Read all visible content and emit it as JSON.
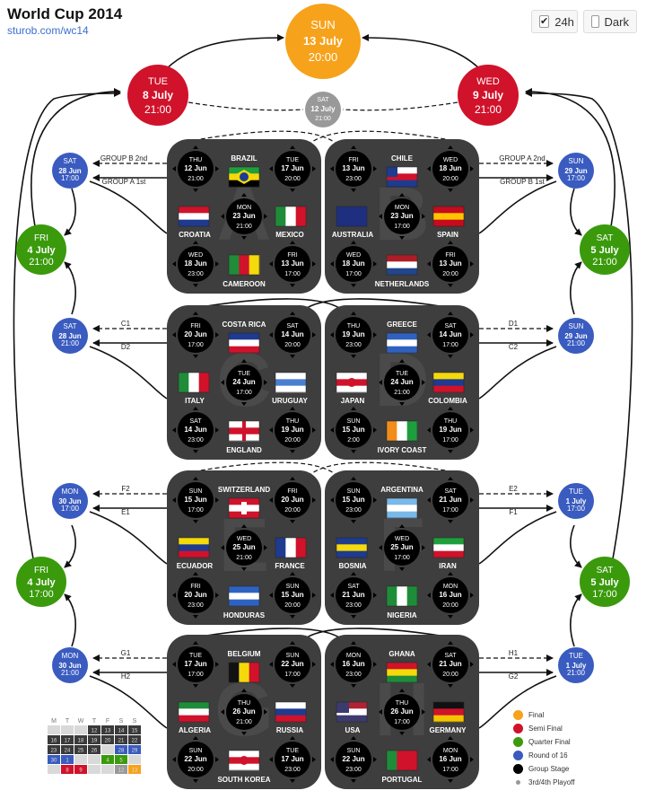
{
  "header": {
    "title": "World Cup 2014",
    "link": "sturob.com/wc14"
  },
  "toggles": [
    {
      "label": "24h",
      "checked": true
    },
    {
      "label": "Dark",
      "checked": false
    }
  ],
  "colors": {
    "final": "#f7a21b",
    "semi": "#d0122b",
    "quarter": "#3a9a0c",
    "round16": "#3a5bbf",
    "group": "#000000",
    "third": "#999999",
    "panel": "#3e3e3e"
  },
  "final": {
    "day": "SUN",
    "date": "13 July",
    "time": "20:00"
  },
  "semis": [
    {
      "day": "TUE",
      "date": "8 July",
      "time": "21:00"
    },
    {
      "day": "WED",
      "date": "9 July",
      "time": "21:00"
    }
  ],
  "third_place": {
    "day": "SAT",
    "date": "12 July",
    "time": "21:00"
  },
  "quarters": [
    {
      "day": "FRI",
      "date": "4 July",
      "time": "21:00"
    },
    {
      "day": "SAT",
      "date": "5 July",
      "time": "21:00"
    },
    {
      "day": "FRI",
      "date": "4 July",
      "time": "17:00"
    },
    {
      "day": "SAT",
      "date": "5 July",
      "time": "17:00"
    }
  ],
  "round16": [
    {
      "day": "SAT",
      "date": "28 Jun",
      "time": "17:00"
    },
    {
      "day": "SUN",
      "date": "29 Jun",
      "time": "17:00"
    },
    {
      "day": "SAT",
      "date": "28 Jun",
      "time": "21:00"
    },
    {
      "day": "SUN",
      "date": "29 Jun",
      "time": "21:00"
    },
    {
      "day": "MON",
      "date": "30 Jun",
      "time": "17:00"
    },
    {
      "day": "TUE",
      "date": "1 July",
      "time": "17:00"
    },
    {
      "day": "MON",
      "date": "30 Jun",
      "time": "21:00"
    },
    {
      "day": "TUE",
      "date": "1 July",
      "time": "21:00"
    }
  ],
  "slot_labels": [
    [
      "GROUP B 2nd",
      "GROUP A 1st",
      "GROUP A 2nd",
      "GROUP B 1st"
    ],
    [
      "C1",
      "D2",
      "D1",
      "C2"
    ],
    [
      "F2",
      "E1",
      "E2",
      "F1"
    ],
    [
      "G1",
      "H2",
      "H1",
      "G2"
    ]
  ],
  "groups": [
    {
      "name": "A",
      "teams": [
        "BRAZIL",
        "CROATIA",
        "MEXICO",
        "CAMEROON"
      ],
      "matches": [
        {
          "day": "THU",
          "date": "12 Jun",
          "time": "21:00"
        },
        {
          "day": "TUE",
          "date": "17 Jun",
          "time": "20:00"
        },
        {
          "day": "MON",
          "date": "23 Jun",
          "time": "21:00"
        },
        {
          "day": "WED",
          "date": "18 Jun",
          "time": "23:00"
        },
        {
          "day": "FRI",
          "date": "13 Jun",
          "time": "17:00"
        }
      ]
    },
    {
      "name": "B",
      "teams": [
        "CHILE",
        "AUSTRALIA",
        "SPAIN",
        "NETHERLANDS"
      ],
      "matches": [
        {
          "day": "FRI",
          "date": "13 Jun",
          "time": "23:00"
        },
        {
          "day": "WED",
          "date": "18 Jun",
          "time": "20:00"
        },
        {
          "day": "MON",
          "date": "23 Jun",
          "time": "17:00"
        },
        {
          "day": "WED",
          "date": "18 Jun",
          "time": "17:00"
        },
        {
          "day": "FRI",
          "date": "13 Jun",
          "time": "20:00"
        }
      ]
    },
    {
      "name": "C",
      "teams": [
        "COSTA RICA",
        "ITALY",
        "URUGUAY",
        "ENGLAND"
      ],
      "matches": [
        {
          "day": "FRI",
          "date": "20 Jun",
          "time": "17:00"
        },
        {
          "day": "SAT",
          "date": "14 Jun",
          "time": "20:00"
        },
        {
          "day": "TUE",
          "date": "24 Jun",
          "time": "17:00"
        },
        {
          "day": "SAT",
          "date": "14 Jun",
          "time": "23:00"
        },
        {
          "day": "THU",
          "date": "19 Jun",
          "time": "20:00"
        }
      ]
    },
    {
      "name": "D",
      "teams": [
        "GREECE",
        "JAPAN",
        "COLOMBIA",
        "IVORY COAST"
      ],
      "matches": [
        {
          "day": "THU",
          "date": "19 Jun",
          "time": "23:00"
        },
        {
          "day": "SAT",
          "date": "14 Jun",
          "time": "17:00"
        },
        {
          "day": "TUE",
          "date": "24 Jun",
          "time": "21:00"
        },
        {
          "day": "SUN",
          "date": "15 Jun",
          "time": "2:00"
        },
        {
          "day": "THU",
          "date": "19 Jun",
          "time": "17:00"
        }
      ]
    },
    {
      "name": "E",
      "teams": [
        "SWITZERLAND",
        "ECUADOR",
        "FRANCE",
        "HONDURAS"
      ],
      "matches": [
        {
          "day": "SUN",
          "date": "15 Jun",
          "time": "17:00"
        },
        {
          "day": "FRI",
          "date": "20 Jun",
          "time": "20:00"
        },
        {
          "day": "WED",
          "date": "25 Jun",
          "time": "21:00"
        },
        {
          "day": "FRI",
          "date": "20 Jun",
          "time": "23:00"
        },
        {
          "day": "SUN",
          "date": "15 Jun",
          "time": "20:00"
        }
      ]
    },
    {
      "name": "F",
      "teams": [
        "ARGENTINA",
        "BOSNIA",
        "IRAN",
        "NIGERIA"
      ],
      "matches": [
        {
          "day": "SUN",
          "date": "15 Jun",
          "time": "23:00"
        },
        {
          "day": "SAT",
          "date": "21 Jun",
          "time": "17:00"
        },
        {
          "day": "WED",
          "date": "25 Jun",
          "time": "17:00"
        },
        {
          "day": "SAT",
          "date": "21 Jun",
          "time": "23:00"
        },
        {
          "day": "MON",
          "date": "16 Jun",
          "time": "20:00"
        }
      ]
    },
    {
      "name": "G",
      "teams": [
        "BELGIUM",
        "ALGERIA",
        "RUSSIA",
        "SOUTH KOREA"
      ],
      "matches": [
        {
          "day": "TUE",
          "date": "17 Jun",
          "time": "17:00"
        },
        {
          "day": "SUN",
          "date": "22 Jun",
          "time": "17:00"
        },
        {
          "day": "THU",
          "date": "26 Jun",
          "time": "21:00"
        },
        {
          "day": "SUN",
          "date": "22 Jun",
          "time": "20:00"
        },
        {
          "day": "TUE",
          "date": "17 Jun",
          "time": "23:00"
        }
      ]
    },
    {
      "name": "H",
      "teams": [
        "GHANA",
        "USA",
        "GERMANY",
        "PORTUGAL"
      ],
      "matches": [
        {
          "day": "MON",
          "date": "16 Jun",
          "time": "23:00"
        },
        {
          "day": "SAT",
          "date": "21 Jun",
          "time": "20:00"
        },
        {
          "day": "THU",
          "date": "26 Jun",
          "time": "17:00"
        },
        {
          "day": "SUN",
          "date": "22 Jun",
          "time": "23:00"
        },
        {
          "day": "MON",
          "date": "16 Jun",
          "time": "17:00"
        }
      ]
    }
  ],
  "calendar": {
    "weekdays": [
      "M",
      "T",
      "W",
      "T",
      "F",
      "S",
      "S"
    ],
    "rows": [
      [
        "",
        "",
        "",
        "12",
        "13",
        "14",
        "15"
      ],
      [
        "16",
        "17",
        "18",
        "19",
        "20",
        "21",
        "22"
      ],
      [
        "23",
        "24",
        "25",
        "26",
        "",
        "28",
        "29"
      ],
      [
        "30",
        "1",
        "",
        "",
        "4",
        "5",
        ""
      ],
      [
        "",
        "8",
        "9",
        "",
        "",
        "12",
        "13"
      ]
    ]
  },
  "legend": [
    {
      "label": "Final",
      "color": "#f7a21b"
    },
    {
      "label": "Semi Final",
      "color": "#d0122b"
    },
    {
      "label": "Quarter Final",
      "color": "#3a9a0c"
    },
    {
      "label": "Round of 16",
      "color": "#3a5bbf"
    },
    {
      "label": "Group Stage",
      "color": "#000000"
    },
    {
      "label": "3rd/4th Playoff",
      "color": "#999999"
    }
  ]
}
